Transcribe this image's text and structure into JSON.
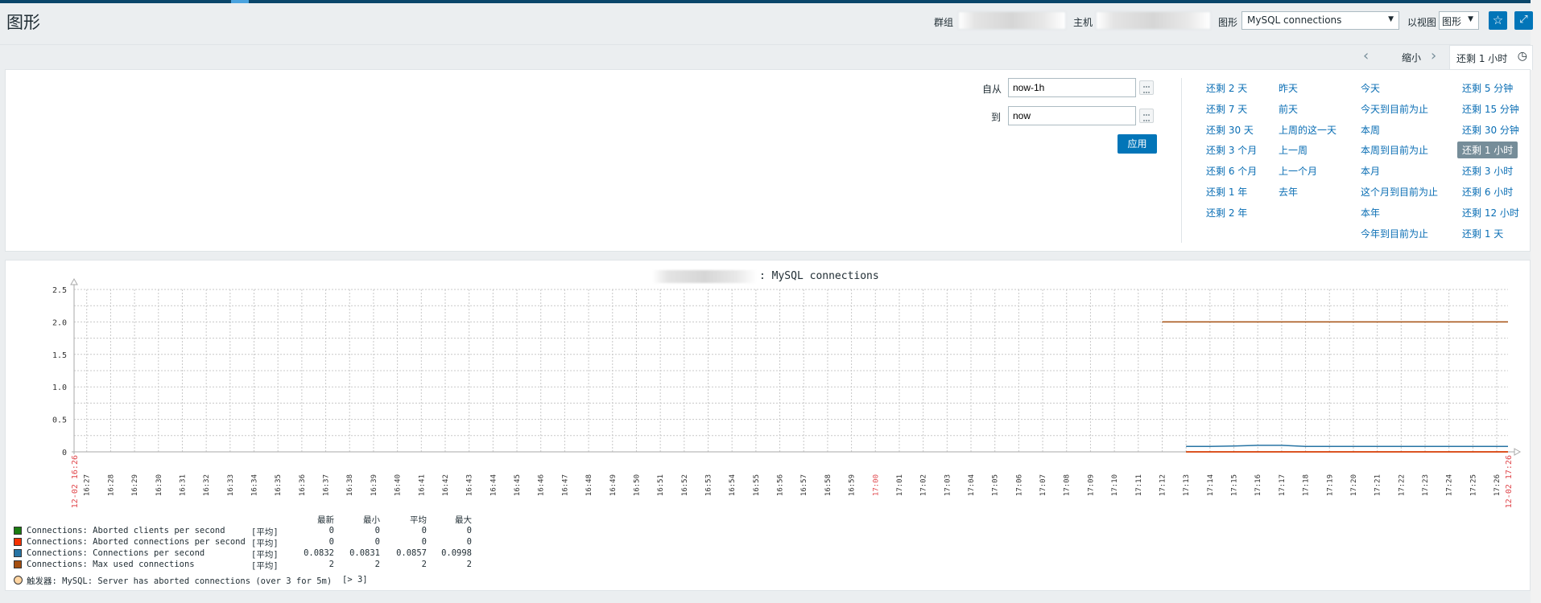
{
  "header": {
    "title": "图形",
    "group_label": "群组",
    "host_label": "主机",
    "graph_label": "图形",
    "graph_value": "MySQL connections",
    "view_label": "以视图",
    "view_value": "图形",
    "favorite_icon": "star-icon",
    "fullscreen_icon": "fullscreen-icon"
  },
  "zoombar": {
    "zoom_out": "缩小",
    "active_tab": "还剩 1 小时",
    "clock_icon": "clock-icon"
  },
  "filter": {
    "from_label": "自从",
    "from_value": "now-1h",
    "to_label": "到",
    "to_value": "now",
    "apply": "应用",
    "quick": [
      [
        "还剩 2 天",
        "还剩 7 天",
        "还剩 30 天",
        "还剩 3 个月",
        "还剩 6 个月",
        "还剩 1 年",
        "还剩 2 年"
      ],
      [
        "昨天",
        "前天",
        "上周的这一天",
        "上一周",
        "上一个月",
        "去年"
      ],
      [
        "今天",
        "今天到目前为止",
        "本周",
        "本周到目前为止",
        "本月",
        "这个月到目前为止",
        "本年",
        "今年到目前为止"
      ],
      [
        "还剩 5 分钟",
        "还剩 15 分钟",
        "还剩 30 分钟",
        "还剩 1 小时",
        "还剩 3 小时",
        "还剩 6 小时",
        "还剩 12 小时",
        "还剩 1 天"
      ]
    ],
    "active_quick": "还剩 1 小时"
  },
  "chart_data": {
    "type": "line",
    "title": ": MySQL connections",
    "ylim": [
      0,
      2.5
    ],
    "yticks": [
      "0",
      "0.5",
      "1.0",
      "1.5",
      "2.0",
      "2.5"
    ],
    "x_start": "12-02 16:26",
    "x_end": "12-02 17:26",
    "xticks": [
      "16:27",
      "16:28",
      "16:29",
      "16:30",
      "16:31",
      "16:32",
      "16:33",
      "16:34",
      "16:35",
      "16:36",
      "16:37",
      "16:38",
      "16:39",
      "16:40",
      "16:41",
      "16:42",
      "16:43",
      "16:44",
      "16:45",
      "16:46",
      "16:47",
      "16:48",
      "16:49",
      "16:50",
      "16:51",
      "16:52",
      "16:53",
      "16:54",
      "16:55",
      "16:56",
      "16:57",
      "16:58",
      "16:59",
      "17:00",
      "17:01",
      "17:02",
      "17:03",
      "17:04",
      "17:05",
      "17:06",
      "17:07",
      "17:08",
      "17:09",
      "17:10",
      "17:11",
      "17:12",
      "17:13",
      "17:14",
      "17:15",
      "17:16",
      "17:17",
      "17:18",
      "17:19",
      "17:20",
      "17:21",
      "17:22",
      "17:23",
      "17:24",
      "17:25",
      "17:26"
    ],
    "grid": true,
    "series": [
      {
        "name": "Connections: Aborted clients per second",
        "color": "#1A7C11",
        "x": [
          "17:13",
          "17:26"
        ],
        "y": [
          0,
          0
        ]
      },
      {
        "name": "Connections: Aborted connections per second",
        "color": "#F63100",
        "x": [
          "17:13",
          "17:26"
        ],
        "y": [
          0,
          0
        ]
      },
      {
        "name": "Connections: Connections per second",
        "color": "#2774A4",
        "x": [
          "17:13",
          "17:14",
          "17:15",
          "17:16",
          "17:17",
          "17:18",
          "17:19",
          "17:26"
        ],
        "y": [
          0.0831,
          0.0832,
          0.09,
          0.0998,
          0.0998,
          0.0835,
          0.0832,
          0.0832
        ]
      },
      {
        "name": "Connections: Max used connections",
        "color": "#A54F10",
        "x": [
          "17:12",
          "17:26"
        ],
        "y": [
          2,
          2
        ]
      }
    ]
  },
  "legend": {
    "headers": [
      "最新",
      "最小",
      "平均",
      "最大"
    ],
    "rows": [
      {
        "name": "Connections: Aborted clients per second",
        "func": "[平均]",
        "last": "0",
        "min": "0",
        "avg": "0",
        "max": "0",
        "color": "#1A7C11"
      },
      {
        "name": "Connections: Aborted connections per second",
        "func": "[平均]",
        "last": "0",
        "min": "0",
        "avg": "0",
        "max": "0",
        "color": "#F63100"
      },
      {
        "name": "Connections: Connections per second",
        "func": "[平均]",
        "last": "0.0832",
        "min": "0.0831",
        "avg": "0.0857",
        "max": "0.0998",
        "color": "#2774A4"
      },
      {
        "name": "Connections: Max used connections",
        "func": "[平均]",
        "last": "2",
        "min": "2",
        "avg": "2",
        "max": "2",
        "color": "#A54F10"
      }
    ],
    "trigger": "触发器: MySQL: Server has aborted connections (over 3 for 5m)",
    "trigger_cond": "[> 3]",
    "trigger_color": "#FFD5A2"
  }
}
